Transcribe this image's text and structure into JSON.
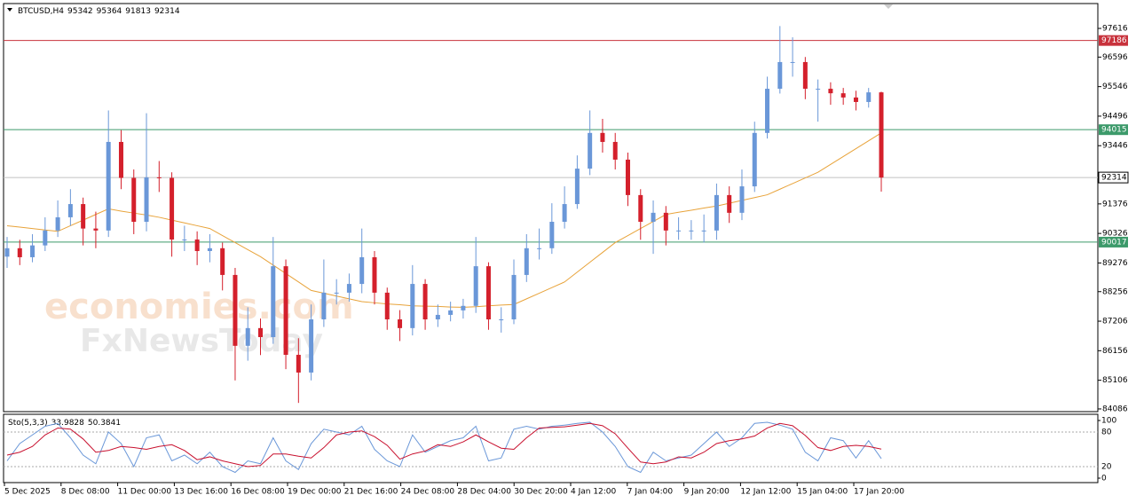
{
  "chart_data": {
    "type": "candlestick",
    "symbol": "BTCUSD,H4",
    "up_color": "#6a97d8",
    "down_color": "#d4202c",
    "open": [
      89500,
      89800,
      89480,
      89900,
      90430,
      90900,
      91370,
      90500,
      90430,
      93580,
      92300,
      90740,
      92320,
      92300,
      90110,
      90110,
      89700,
      89800,
      88850,
      86330,
      86960,
      86640,
      89160,
      86010,
      85380,
      87270,
      88220,
      88220,
      88530,
      89480,
      88220,
      87270,
      86960,
      88530,
      87270,
      87430,
      87590,
      87750,
      89160,
      87270,
      87270,
      88850,
      89800,
      89800,
      90740,
      91370,
      92630,
      93900,
      93580,
      92950,
      91690,
      90740,
      91060,
      90430,
      90430,
      90430,
      90430,
      91690,
      91060,
      92000,
      93900,
      95470,
      96420,
      96420,
      95470,
      95470,
      95310,
      95160,
      95000,
      95342
    ],
    "high": [
      90200,
      90100,
      90300,
      90900,
      91500,
      91900,
      91600,
      91100,
      94700,
      94000,
      92600,
      94600,
      92900,
      92500,
      90600,
      90400,
      90300,
      90000,
      89100,
      87700,
      87300,
      90200,
      89400,
      86600,
      87800,
      89400,
      88700,
      88900,
      90500,
      89700,
      88400,
      87600,
      89200,
      88700,
      87800,
      87900,
      88000,
      90200,
      89300,
      87700,
      89400,
      90300,
      90500,
      91400,
      92000,
      93100,
      94700,
      94400,
      93900,
      93200,
      91900,
      91500,
      91300,
      90900,
      90800,
      91000,
      92100,
      92000,
      92600,
      94300,
      95900,
      97700,
      97300,
      96600,
      95800,
      95700,
      95500,
      95400,
      95500,
      95364
    ],
    "low": [
      89100,
      89200,
      89300,
      89700,
      90200,
      90600,
      89900,
      89800,
      90200,
      91900,
      90300,
      90400,
      91800,
      89500,
      89700,
      89200,
      89300,
      88300,
      85100,
      85800,
      86000,
      86400,
      85500,
      84300,
      85100,
      87000,
      87800,
      87900,
      88200,
      87800,
      86900,
      86500,
      86700,
      86900,
      87000,
      87200,
      87300,
      87500,
      86900,
      86800,
      87100,
      88600,
      89400,
      89600,
      90500,
      91200,
      92400,
      93200,
      92600,
      91300,
      90100,
      89600,
      89900,
      90100,
      90100,
      90000,
      90100,
      90700,
      90800,
      91800,
      93700,
      95300,
      95900,
      95100,
      94300,
      94900,
      94900,
      94700,
      94800,
      91813
    ],
    "close": [
      89800,
      89480,
      89900,
      90430,
      90900,
      91370,
      90500,
      90430,
      93580,
      92300,
      90740,
      92320,
      92300,
      90110,
      90110,
      89700,
      89800,
      88850,
      86330,
      86960,
      86640,
      89160,
      86010,
      85380,
      87270,
      88220,
      88220,
      88530,
      89480,
      88220,
      87270,
      86960,
      88530,
      87270,
      87430,
      87590,
      87750,
      89160,
      87270,
      87270,
      88850,
      89800,
      89800,
      90740,
      91370,
      92630,
      93900,
      93580,
      92950,
      91690,
      90740,
      91060,
      90430,
      90430,
      90430,
      90430,
      91690,
      91060,
      92000,
      93900,
      95470,
      96420,
      96420,
      95470,
      95470,
      95310,
      95160,
      95000,
      95342,
      92314
    ],
    "ma": {
      "color": "#e8a33a",
      "values": [
        90600,
        90550,
        90500,
        90450,
        90400,
        90600,
        90800,
        91000,
        91200,
        91120,
        91050,
        90980,
        90900,
        90800,
        90700,
        90600,
        90500,
        90250,
        90000,
        89750,
        89500,
        89200,
        88900,
        88600,
        88300,
        88200,
        88100,
        88000,
        87900,
        87860,
        87820,
        87790,
        87750,
        87740,
        87730,
        87710,
        87700,
        87720,
        87750,
        87780,
        87800,
        88000,
        88200,
        88400,
        88600,
        88950,
        89300,
        89650,
        90000,
        90250,
        90500,
        90750,
        91000,
        91080,
        91150,
        91230,
        91300,
        91400,
        91500,
        91600,
        91700,
        91900,
        92100,
        92300,
        92500,
        92780,
        93060,
        93340,
        93620,
        93900
      ]
    },
    "ylim": [
      83990,
      98500
    ],
    "yticks": [
      97616,
      96596,
      95546,
      94496,
      93446,
      91376,
      90326,
      89276,
      88256,
      87206,
      86156,
      85106,
      84086
    ],
    "levels": [
      {
        "value": 97186,
        "color": "#c8323c"
      },
      {
        "value": 94015,
        "color": "#3c9a6a"
      },
      {
        "value": 90017,
        "color": "#3c9a6a"
      }
    ],
    "xlabels": [
      "5 Dec 2025",
      "8 Dec 08:00",
      "11 Dec 00:00",
      "13 Dec 16:00",
      "16 Dec 08:00",
      "19 Dec 00:00",
      "21 Dec 16:00",
      "24 Dec 08:00",
      "28 Dec 04:00",
      "30 Dec 20:00",
      "4 Jan 12:00",
      "7 Jan 04:00",
      "9 Jan 20:00",
      "12 Jan 12:00",
      "15 Jan 04:00",
      "17 Jan 20:00"
    ],
    "watermark": [
      "economies.com",
      "FxNewsToday"
    ],
    "oscillator": {
      "name": "Sto(5,3,3)",
      "ylim": [
        0,
        100
      ],
      "yticks": [
        0,
        20,
        80,
        100
      ],
      "series": [
        {
          "color": "#6a97d8",
          "values": [
            30,
            60,
            75,
            90,
            95,
            70,
            40,
            25,
            80,
            60,
            20,
            70,
            75,
            30,
            40,
            25,
            45,
            20,
            10,
            30,
            25,
            70,
            30,
            15,
            60,
            85,
            80,
            75,
            90,
            50,
            30,
            20,
            75,
            45,
            55,
            65,
            70,
            90,
            30,
            35,
            85,
            90,
            85,
            90,
            92,
            95,
            97,
            80,
            55,
            20,
            10,
            45,
            30,
            35,
            40,
            60,
            80,
            55,
            70,
            95,
            97,
            92,
            85,
            45,
            30,
            70,
            65,
            35,
            65,
            33.9828
          ]
        },
        {
          "color": "#c8102e",
          "values": [
            40,
            45,
            55,
            75,
            87,
            85,
            68,
            45,
            48,
            55,
            53,
            50,
            55,
            58,
            48,
            32,
            37,
            30,
            25,
            20,
            22,
            42,
            42,
            38,
            35,
            53,
            75,
            80,
            82,
            72,
            57,
            33,
            42,
            47,
            58,
            55,
            63,
            75,
            63,
            52,
            50,
            70,
            87,
            88,
            89,
            92,
            95,
            91,
            77,
            52,
            28,
            25,
            28,
            37,
            35,
            45,
            60,
            65,
            68,
            73,
            87,
            95,
            91,
            74,
            53,
            48,
            55,
            57,
            55,
            50.3841
          ]
        }
      ]
    }
  }
}
